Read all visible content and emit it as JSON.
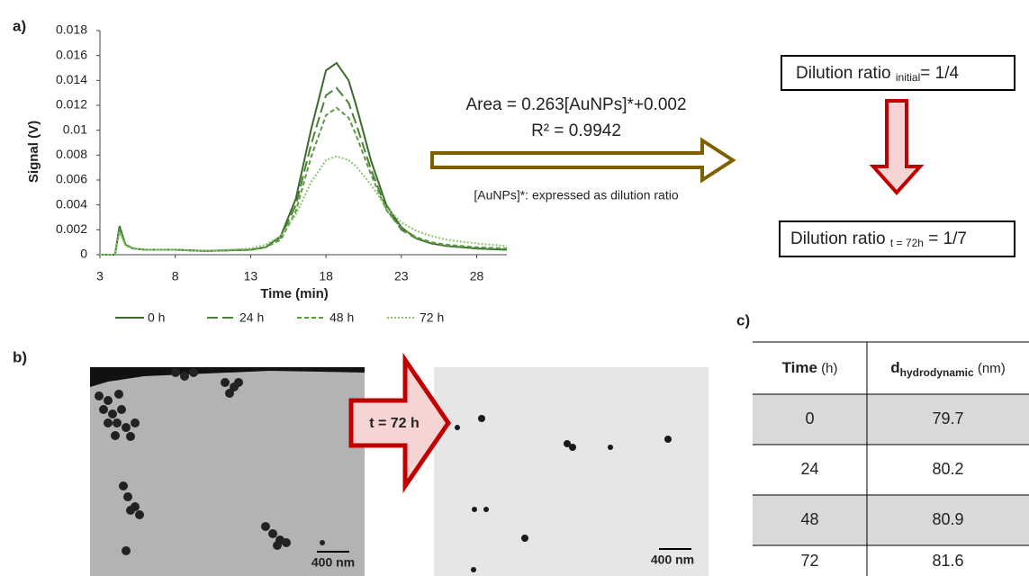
{
  "chart_data": {
    "type": "line",
    "x_label": "Time (min)",
    "y_label": "Signal (V)",
    "x": [
      3,
      4,
      4.3,
      4.7,
      5.2,
      6,
      8,
      10,
      13,
      14,
      15,
      16,
      17,
      18,
      18.7,
      19.5,
      20,
      21,
      22,
      23,
      24,
      25,
      26,
      28,
      30
    ],
    "xlim": [
      3,
      30
    ],
    "xticks": [
      3,
      8,
      13,
      18,
      23,
      28
    ],
    "ylim": [
      0,
      0.018
    ],
    "yticks": [
      0,
      0.002,
      0.004,
      0.006,
      0.008,
      0.01,
      0.012,
      0.014,
      0.016,
      0.018
    ],
    "series": [
      {
        "name": "0 h",
        "color": "#3b6a2a",
        "style": "solid",
        "values": [
          0,
          0,
          0.0023,
          0.0008,
          0.0005,
          0.0004,
          0.0004,
          0.0003,
          0.0004,
          0.0006,
          0.0015,
          0.0045,
          0.01,
          0.0148,
          0.0154,
          0.014,
          0.012,
          0.0075,
          0.004,
          0.0022,
          0.0013,
          0.0009,
          0.0007,
          0.0005,
          0.0004
        ]
      },
      {
        "name": "24 h",
        "color": "#4a8236",
        "style": "long-dash",
        "values": [
          0,
          0,
          0.0022,
          0.0008,
          0.0005,
          0.0004,
          0.0004,
          0.0003,
          0.0004,
          0.0006,
          0.0014,
          0.004,
          0.0088,
          0.0128,
          0.0134,
          0.0122,
          0.0105,
          0.0068,
          0.0037,
          0.002,
          0.0013,
          0.0009,
          0.0007,
          0.0005,
          0.0004
        ]
      },
      {
        "name": "48 h",
        "color": "#5c9a44",
        "style": "short-dash",
        "values": [
          0,
          0,
          0.002,
          0.0008,
          0.0005,
          0.0004,
          0.0004,
          0.0003,
          0.0004,
          0.0006,
          0.0012,
          0.0035,
          0.0078,
          0.0112,
          0.0118,
          0.011,
          0.0096,
          0.0064,
          0.0036,
          0.0021,
          0.0014,
          0.001,
          0.0008,
          0.0006,
          0.0005
        ]
      },
      {
        "name": "72 h",
        "color": "#8cc46f",
        "style": "dotted",
        "values": [
          0,
          0,
          0.0018,
          0.0007,
          0.0005,
          0.0004,
          0.0004,
          0.0003,
          0.0005,
          0.0008,
          0.0015,
          0.0032,
          0.0058,
          0.0076,
          0.0079,
          0.0076,
          0.0071,
          0.0056,
          0.0038,
          0.0026,
          0.0019,
          0.0015,
          0.0012,
          0.0009,
          0.0007
        ]
      }
    ]
  },
  "panels": {
    "a": "a)",
    "b": "b)",
    "c": "c)"
  },
  "equation": {
    "line1": "Area = 0.263[AuNPs]*+0.002",
    "line2": "R² = 0.9942",
    "note": "[AuNPs]*: expressed as dilution ratio"
  },
  "dilution": {
    "initial": {
      "text": "Dilution ratio ",
      "sub": "initial",
      "value": "= 1/4"
    },
    "final": {
      "text": "Dilution ratio ",
      "sub": "t = 72h",
      "value": " = 1/7"
    }
  },
  "tem": {
    "arrow_label": "t = 72 h",
    "scale_left": "400 nm",
    "scale_right": "400 nm"
  },
  "table": {
    "header": [
      {
        "main": "Time",
        "unit": " (h)"
      },
      {
        "main": "d",
        "sub": "hydrodynamic",
        "unit": " (nm)"
      }
    ],
    "rows": [
      [
        0,
        79.7
      ],
      [
        24,
        80.2
      ],
      [
        48,
        80.9
      ],
      [
        72,
        81.6
      ]
    ]
  }
}
